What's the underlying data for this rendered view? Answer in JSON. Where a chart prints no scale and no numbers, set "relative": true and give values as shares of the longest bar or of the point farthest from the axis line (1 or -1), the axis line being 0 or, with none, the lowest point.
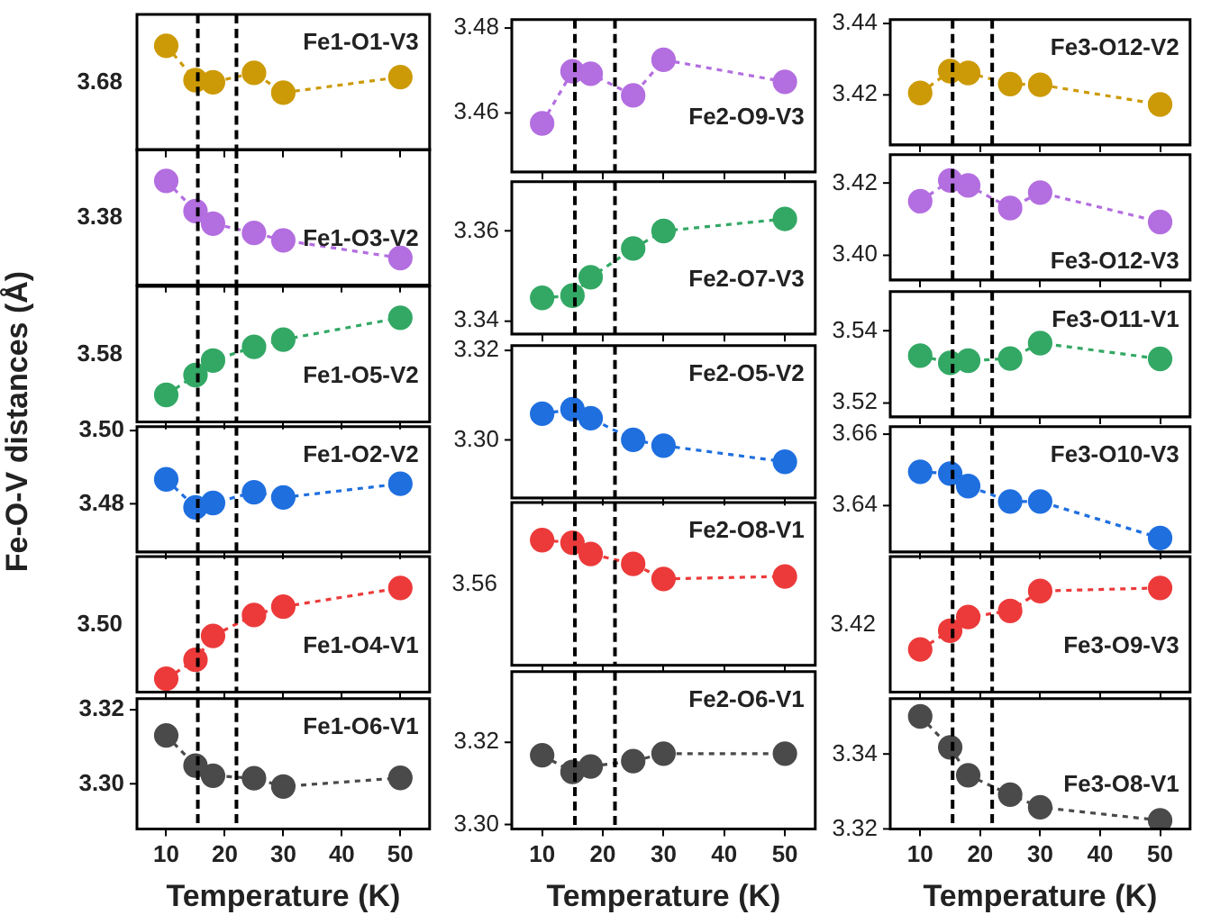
{
  "chart_data": [
    {
      "type": "line",
      "ylabel": "Fe-O-V distances (Å)",
      "relative": true,
      "tick_labels": false,
      "xlim": [
        5,
        55
      ],
      "xticks": [
        10,
        20,
        30,
        40,
        50
      ],
      "x": [
        10,
        15,
        18,
        25,
        30,
        50
      ],
      "legend": "top right",
      "marker": "circle",
      "line_style": "dashed",
      "annotations": [
        "3.68"
      ],
      "ref_lines": [
        {
          "axis": "x",
          "value": 15.4,
          "line_style": "dashed"
        },
        {
          "axis": "x",
          "value": 22,
          "line_style": "dashed"
        }
      ],
      "series": [
        {
          "name": "Fe1-O1-V3",
          "color": "#cc9a06",
          "values": [
            1,
            0.67,
            0.65,
            0.74,
            0.55,
            0.7
          ]
        }
      ]
    },
    {
      "type": "line",
      "relative": true,
      "tick_labels": false,
      "xlim": [
        5,
        55
      ],
      "xticks": [
        10,
        20,
        30,
        40,
        50
      ],
      "x": [
        10,
        15,
        18,
        25,
        30,
        50
      ],
      "legend": "right",
      "marker": "circle",
      "line_style": "dashed",
      "annotations": [
        "3.38"
      ],
      "ref_lines": [
        {
          "axis": "x",
          "value": 15.4,
          "line_style": "dashed"
        },
        {
          "axis": "x",
          "value": 22,
          "line_style": "dashed"
        }
      ],
      "series": [
        {
          "name": "Fe1-O3-V2",
          "color": "#b36ee0",
          "values": [
            1,
            0.71,
            0.59,
            0.5,
            0.43,
            0.26
          ]
        }
      ]
    },
    {
      "type": "line",
      "relative": true,
      "tick_labels": false,
      "xlim": [
        5,
        55
      ],
      "xticks": [
        10,
        20,
        30,
        40,
        50
      ],
      "x": [
        10,
        15,
        18,
        25,
        30,
        50
      ],
      "legend": "right",
      "marker": "circle",
      "line_style": "dashed",
      "annotations": [
        "3.58"
      ],
      "ref_lines": [
        {
          "axis": "x",
          "value": 15.4,
          "line_style": "dashed"
        },
        {
          "axis": "x",
          "value": 22,
          "line_style": "dashed"
        }
      ],
      "series": [
        {
          "name": "Fe1-O5-V2",
          "color": "#33a865",
          "values": [
            0.26,
            0.45,
            0.59,
            0.72,
            0.79,
            1
          ]
        }
      ]
    },
    {
      "type": "line",
      "tick_labels": "y",
      "xlim": [
        5,
        55
      ],
      "xticks": [
        10,
        20,
        30,
        40,
        50
      ],
      "ylim": [
        3.467,
        3.501
      ],
      "yticks": [
        3.48,
        {
          "value": 3.5,
          "label": "3.50"
        }
      ],
      "x": [
        10,
        15,
        18,
        25,
        30,
        50
      ],
      "legend": "top right",
      "marker": "circle",
      "line_style": "dashed",
      "ref_lines": [
        {
          "axis": "x",
          "value": 15.4,
          "line_style": "dashed"
        },
        {
          "axis": "x",
          "value": 22,
          "line_style": "dashed"
        }
      ],
      "series": [
        {
          "name": "Fe1-O2-V2",
          "color": "#1f6fdf",
          "values": [
            3.4867,
            3.4791,
            3.4803,
            3.4832,
            3.4818,
            3.4855
          ]
        }
      ]
    },
    {
      "type": "line",
      "relative": true,
      "tick_labels": false,
      "xlim": [
        5,
        55
      ],
      "xticks": [
        10,
        20,
        30,
        40,
        50
      ],
      "x": [
        10,
        15,
        18,
        25,
        30,
        50
      ],
      "legend": "right",
      "marker": "circle",
      "line_style": "dashed",
      "annotations": [
        "3.50"
      ],
      "ref_lines": [
        {
          "axis": "x",
          "value": 15.4,
          "line_style": "dashed"
        },
        {
          "axis": "x",
          "value": 22,
          "line_style": "dashed"
        }
      ],
      "series": [
        {
          "name": "Fe1-O4-V1",
          "color": "#ec3a3a",
          "values": [
            0.13,
            0.31,
            0.54,
            0.74,
            0.82,
            1
          ]
        }
      ]
    },
    {
      "type": "line",
      "xlabel": "Temperature (K)",
      "xlim": [
        5,
        55
      ],
      "xticks": [
        10,
        20,
        30,
        40,
        50
      ],
      "ylim": [
        3.288,
        3.323
      ],
      "yticks": [
        {
          "value": 3.3,
          "label": "3.30"
        },
        3.32
      ],
      "x": [
        10,
        15,
        18,
        25,
        30,
        50
      ],
      "legend": "top right",
      "marker": "circle",
      "line_style": "dashed",
      "ref_lines": [
        {
          "axis": "x",
          "value": 15.4,
          "line_style": "dashed"
        },
        {
          "axis": "x",
          "value": 22,
          "line_style": "dashed"
        }
      ],
      "series": [
        {
          "name": "Fe1-O6-V1",
          "color": "#4a4a4a",
          "values": [
            3.3131,
            3.305,
            3.3023,
            3.3016,
            3.2994,
            3.3017
          ]
        }
      ]
    },
    {
      "type": "line",
      "tick_labels": "y",
      "xlim": [
        5,
        55
      ],
      "xticks": [
        10,
        20,
        30,
        40,
        50
      ],
      "ylim": [
        3.446,
        3.482
      ],
      "yticks": [
        3.46,
        3.48
      ],
      "x": [
        10,
        15,
        18,
        25,
        30,
        50
      ],
      "legend": "right",
      "marker": "circle",
      "line_style": "dashed",
      "ref_lines": [
        {
          "axis": "x",
          "value": 15.4,
          "line_style": "dashed"
        },
        {
          "axis": "x",
          "value": 22,
          "line_style": "dashed"
        }
      ],
      "series": [
        {
          "name": "Fe2-O9-V3",
          "color": "#b36ee0",
          "values": [
            3.4575,
            3.4698,
            3.4692,
            3.4641,
            3.4725,
            3.4673
          ]
        }
      ]
    },
    {
      "type": "line",
      "tick_labels": "y",
      "xlim": [
        5,
        55
      ],
      "xticks": [
        10,
        20,
        30,
        40,
        50
      ],
      "ylim": [
        3.337,
        3.371
      ],
      "yticks": [
        3.34,
        3.36
      ],
      "x": [
        10,
        15,
        18,
        25,
        30,
        50
      ],
      "legend": "right",
      "marker": "circle",
      "line_style": "dashed",
      "ref_lines": [
        {
          "axis": "x",
          "value": 15.4,
          "line_style": "dashed"
        },
        {
          "axis": "x",
          "value": 22,
          "line_style": "dashed"
        }
      ],
      "series": [
        {
          "name": "Fe2-O7-V3",
          "color": "#33a865",
          "values": [
            3.3451,
            3.3456,
            3.3497,
            3.3561,
            3.36,
            3.3627
          ]
        }
      ]
    },
    {
      "type": "line",
      "tick_labels": "y",
      "xlim": [
        5,
        55
      ],
      "xticks": [
        10,
        20,
        30,
        40,
        50
      ],
      "ylim": [
        3.287,
        3.321
      ],
      "yticks": [
        {
          "value": 3.3,
          "label": "3.30"
        },
        3.32
      ],
      "x": [
        10,
        15,
        18,
        25,
        30,
        50
      ],
      "legend": "top right",
      "marker": "circle",
      "line_style": "dashed",
      "ref_lines": [
        {
          "axis": "x",
          "value": 15.4,
          "line_style": "dashed"
        },
        {
          "axis": "x",
          "value": 22,
          "line_style": "dashed"
        }
      ],
      "series": [
        {
          "name": "Fe2-O5-V2",
          "color": "#1f6fdf",
          "values": [
            3.3058,
            3.3068,
            3.3048,
            3.3,
            3.2987,
            3.2951
          ]
        }
      ]
    },
    {
      "type": "line",
      "relative": true,
      "tick_labels": false,
      "xlim": [
        5,
        55
      ],
      "xticks": [
        10,
        20,
        30,
        40,
        50
      ],
      "x": [
        10,
        15,
        18,
        25,
        30,
        50
      ],
      "legend": "top right",
      "marker": "circle",
      "line_style": "dashed",
      "annotations": [
        "3.56"
      ],
      "ref_lines": [
        {
          "axis": "x",
          "value": 15.4,
          "line_style": "dashed"
        },
        {
          "axis": "x",
          "value": 22,
          "line_style": "dashed"
        }
      ],
      "series": [
        {
          "name": "Fe2-O8-V1",
          "color": "#ec3a3a",
          "values": [
            1,
            0.98,
            0.89,
            0.81,
            0.69,
            0.71
          ]
        }
      ]
    },
    {
      "type": "line",
      "xlabel": "Temperature (K)",
      "xlim": [
        5,
        55
      ],
      "xticks": [
        10,
        20,
        30,
        40,
        50
      ],
      "ylim": [
        3.299,
        3.337
      ],
      "yticks": [
        {
          "value": 3.3,
          "label": "3.30"
        },
        3.32
      ],
      "x": [
        10,
        15,
        18,
        25,
        30,
        50
      ],
      "legend": "top right",
      "marker": "circle",
      "line_style": "dashed",
      "ref_lines": [
        {
          "axis": "x",
          "value": 15.4,
          "line_style": "dashed"
        },
        {
          "axis": "x",
          "value": 22,
          "line_style": "dashed"
        }
      ],
      "series": [
        {
          "name": "Fe2-O6-V1",
          "color": "#4a4a4a",
          "values": [
            3.3168,
            3.3128,
            3.3141,
            3.3154,
            3.3172,
            3.3172
          ]
        }
      ]
    },
    {
      "type": "line",
      "tick_labels": "y",
      "xlim": [
        5,
        55
      ],
      "xticks": [
        10,
        20,
        30,
        40,
        50
      ],
      "ylim": [
        3.406,
        3.441
      ],
      "yticks": [
        3.42,
        3.44
      ],
      "x": [
        10,
        15,
        18,
        25,
        30,
        50
      ],
      "legend": "top right",
      "marker": "circle",
      "line_style": "dashed",
      "ref_lines": [
        {
          "axis": "x",
          "value": 15.4,
          "line_style": "dashed"
        },
        {
          "axis": "x",
          "value": 22,
          "line_style": "dashed"
        }
      ],
      "series": [
        {
          "name": "Fe3-O12-V2",
          "color": "#cc9a06",
          "values": [
            3.4205,
            3.4266,
            3.4261,
            3.423,
            3.4228,
            3.4173
          ]
        }
      ]
    },
    {
      "type": "line",
      "tick_labels": "y",
      "xlim": [
        5,
        55
      ],
      "xticks": [
        10,
        20,
        30,
        40,
        50
      ],
      "ylim": [
        3.393,
        3.428
      ],
      "yticks": [
        {
          "value": 3.4,
          "label": "3.40"
        },
        3.42
      ],
      "x": [
        10,
        15,
        18,
        25,
        30,
        50
      ],
      "legend": "bottom right",
      "marker": "circle",
      "line_style": "dashed",
      "ref_lines": [
        {
          "axis": "x",
          "value": 15.4,
          "line_style": "dashed"
        },
        {
          "axis": "x",
          "value": 22,
          "line_style": "dashed"
        }
      ],
      "series": [
        {
          "name": "Fe3-O12-V3",
          "color": "#b36ee0",
          "values": [
            3.415,
            3.4208,
            3.4194,
            3.4131,
            3.4174,
            3.4092
          ]
        }
      ]
    },
    {
      "type": "line",
      "tick_labels": "y",
      "xlim": [
        5,
        55
      ],
      "xticks": [
        10,
        20,
        30,
        40,
        50
      ],
      "ylim": [
        3.516,
        3.551
      ],
      "yticks": [
        3.52,
        3.54
      ],
      "x": [
        10,
        15,
        18,
        25,
        30,
        50
      ],
      "legend": "top right",
      "marker": "circle",
      "line_style": "dashed",
      "ref_lines": [
        {
          "axis": "x",
          "value": 15.4,
          "line_style": "dashed"
        },
        {
          "axis": "x",
          "value": 22,
          "line_style": "dashed"
        }
      ],
      "series": [
        {
          "name": "Fe3-O11-V1",
          "color": "#33a865",
          "values": [
            3.5331,
            3.5311,
            3.5317,
            3.5323,
            3.5366,
            3.5322
          ]
        }
      ]
    },
    {
      "type": "line",
      "tick_labels": "y",
      "xlim": [
        5,
        55
      ],
      "xticks": [
        10,
        20,
        30,
        40,
        50
      ],
      "ylim": [
        3.627,
        3.662
      ],
      "yticks": [
        3.64,
        3.66
      ],
      "x": [
        10,
        15,
        18,
        25,
        30,
        50
      ],
      "legend": "top right",
      "marker": "circle",
      "line_style": "dashed",
      "ref_lines": [
        {
          "axis": "x",
          "value": 15.4,
          "line_style": "dashed"
        },
        {
          "axis": "x",
          "value": 22,
          "line_style": "dashed"
        }
      ],
      "series": [
        {
          "name": "Fe3-O10-V3",
          "color": "#1f6fdf",
          "values": [
            3.6494,
            3.6489,
            3.6454,
            3.6411,
            3.6411,
            3.6309
          ]
        }
      ]
    },
    {
      "type": "line",
      "relative": true,
      "tick_labels": false,
      "xlim": [
        5,
        55
      ],
      "xticks": [
        10,
        20,
        30,
        40,
        50
      ],
      "x": [
        10,
        15,
        18,
        25,
        30,
        50
      ],
      "legend": "right",
      "marker": "circle",
      "line_style": "dashed",
      "annotations": [
        "3.42"
      ],
      "ref_lines": [
        {
          "axis": "x",
          "value": 15.4,
          "line_style": "dashed"
        },
        {
          "axis": "x",
          "value": 22,
          "line_style": "dashed"
        }
      ],
      "series": [
        {
          "name": "Fe3-O9-V3",
          "color": "#ec3a3a",
          "values": [
            0.41,
            0.59,
            0.72,
            0.78,
            0.97,
            1
          ]
        }
      ]
    },
    {
      "type": "line",
      "xlabel": "Temperature (K)",
      "xlim": [
        5,
        55
      ],
      "xticks": [
        10,
        20,
        30,
        40,
        50
      ],
      "ylim": [
        3.32,
        3.355
      ],
      "yticks": [
        3.32,
        3.34
      ],
      "x": [
        10,
        15,
        18,
        25,
        30,
        50
      ],
      "legend": "right",
      "marker": "circle",
      "line_style": "dashed",
      "ref_lines": [
        {
          "axis": "x",
          "value": 15.4,
          "line_style": "dashed"
        },
        {
          "axis": "x",
          "value": 22,
          "line_style": "dashed"
        }
      ],
      "series": [
        {
          "name": "Fe3-O8-V1",
          "color": "#4a4a4a",
          "values": [
            3.3502,
            3.3419,
            3.3344,
            3.3292,
            3.3258,
            3.3223
          ]
        }
      ]
    }
  ]
}
